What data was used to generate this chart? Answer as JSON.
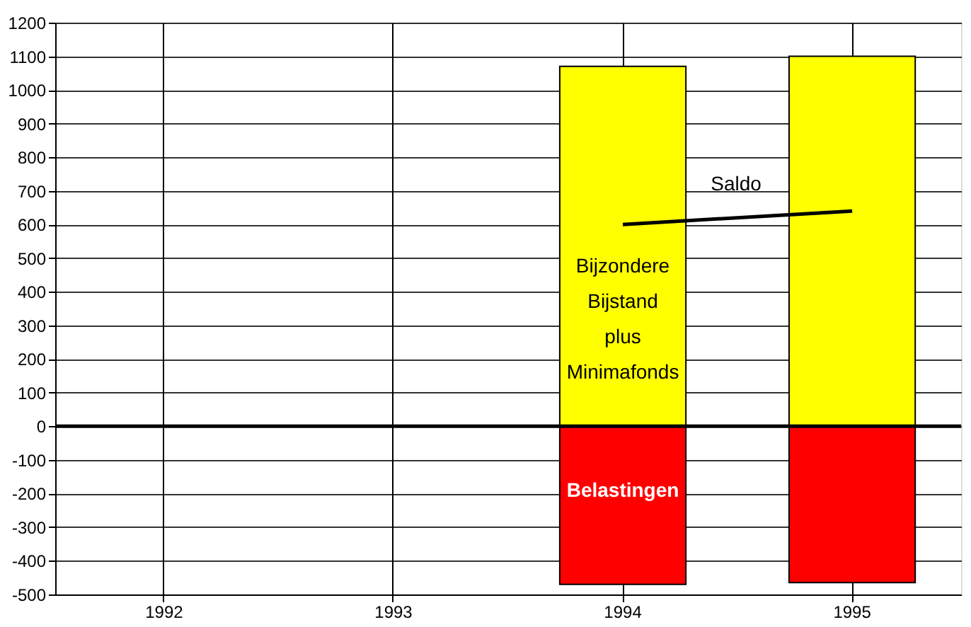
{
  "chart_data": {
    "type": "bar",
    "stacked": true,
    "categories": [
      "1992",
      "1993",
      "1994",
      "1995"
    ],
    "series": [
      {
        "name": "Bijzondere Bijstand plus Minimafonds",
        "color": "#ffff00",
        "values": [
          null,
          null,
          1070,
          1100
        ]
      },
      {
        "name": "Belastingen",
        "color": "#ff0000",
        "values": [
          null,
          null,
          -470,
          -465
        ]
      },
      {
        "name": "Saldo",
        "type": "line",
        "color": "#000000",
        "values": [
          null,
          null,
          600,
          640
        ]
      }
    ],
    "ylim": [
      -500,
      1200
    ],
    "yticks": [
      -500,
      -400,
      -300,
      -200,
      -100,
      0,
      100,
      200,
      300,
      400,
      500,
      600,
      700,
      800,
      900,
      1000,
      1100,
      1200
    ],
    "grid": true,
    "ref_lines": [
      {
        "axis": "y",
        "value": 0,
        "color": "#000000"
      }
    ]
  }
}
